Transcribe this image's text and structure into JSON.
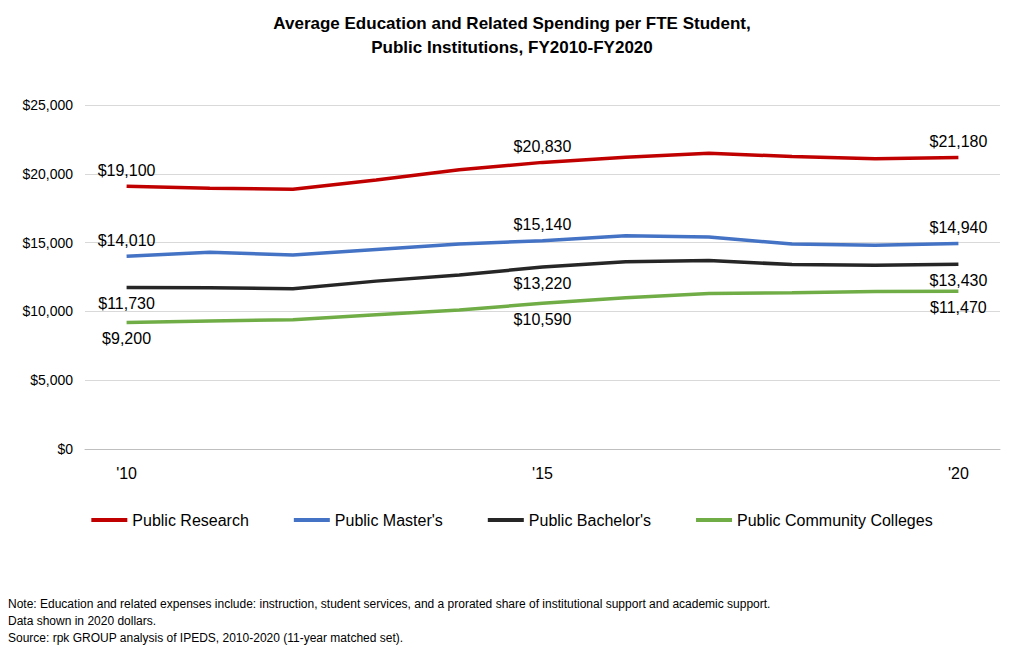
{
  "chart_data": {
    "type": "line",
    "title": "Average Education and Related Spending per FTE Student,\nPublic Institutions, FY2010-FY2020",
    "categories": [
      "'10",
      null,
      null,
      null,
      null,
      "'15",
      null,
      null,
      null,
      null,
      "'20"
    ],
    "series": [
      {
        "name": "Public Research",
        "color": "#c00000",
        "values": [
          19100,
          18950,
          18880,
          19550,
          20300,
          20830,
          21200,
          21500,
          21250,
          21100,
          21180
        ],
        "value_labels": [
          "$19,100",
          null,
          null,
          null,
          null,
          "$20,830",
          null,
          null,
          null,
          null,
          "$21,180"
        ]
      },
      {
        "name": "Public Master's",
        "color": "#4472c4",
        "values": [
          14010,
          14300,
          14100,
          14500,
          14900,
          15140,
          15500,
          15400,
          14900,
          14800,
          14940
        ],
        "value_labels": [
          "$14,010",
          null,
          null,
          null,
          null,
          "$15,140",
          null,
          null,
          null,
          null,
          "$14,940"
        ]
      },
      {
        "name": "Public Bachelor's",
        "color": "#262626",
        "values": [
          11730,
          11720,
          11650,
          12200,
          12650,
          13220,
          13600,
          13700,
          13400,
          13350,
          13430
        ],
        "value_labels": [
          "$11,730",
          null,
          null,
          null,
          null,
          "$13,220",
          null,
          null,
          null,
          null,
          "$13,430"
        ]
      },
      {
        "name": "Public Community Colleges",
        "color": "#70ad47",
        "values": [
          9200,
          9300,
          9400,
          9750,
          10100,
          10590,
          11000,
          11300,
          11350,
          11450,
          11470
        ],
        "value_labels": [
          "$9,200",
          null,
          null,
          null,
          null,
          "$10,590",
          null,
          null,
          null,
          null,
          "$11,470"
        ]
      }
    ],
    "ylim": [
      0,
      25000
    ],
    "yticks": [
      {
        "value": 0,
        "label": "$0"
      },
      {
        "value": 5000,
        "label": "$5,000"
      },
      {
        "value": 10000,
        "label": "$10,000"
      },
      {
        "value": 15000,
        "label": "$15,000"
      },
      {
        "value": 20000,
        "label": "$20,000"
      },
      {
        "value": 25000,
        "label": "$25,000"
      }
    ],
    "grid": true,
    "legend": "bottom",
    "notes": [
      "Note: Education and related expenses include: instruction, student services, and a prorated share of institutional support and academic support.",
      "Data shown in 2020 dollars.",
      "Source: rpk GROUP analysis of IPEDS, 2010-2020 (11-year matched set)."
    ]
  }
}
